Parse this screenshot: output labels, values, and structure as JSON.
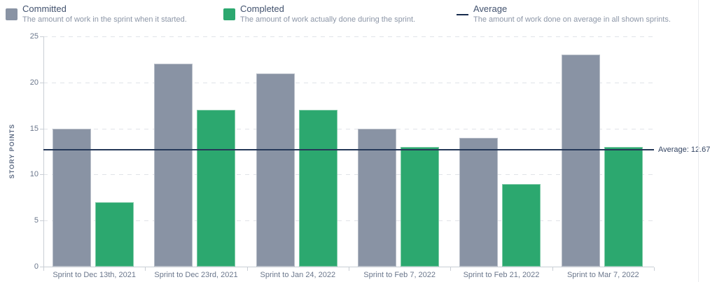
{
  "legend": {
    "committed": {
      "label": "Committed",
      "description": "The amount of work in the sprint when it started.",
      "color": "#8993A4"
    },
    "completed": {
      "label": "Completed",
      "description": "The amount of work actually done during the sprint.",
      "color": "#2CA86F"
    },
    "average": {
      "label": "Average",
      "description": "The amount of work done on average in all shown sprints.",
      "color": "#253858"
    }
  },
  "chart_data": {
    "type": "bar",
    "title": "",
    "xlabel": "",
    "ylabel": "STORY POINTS",
    "ylim": [
      0,
      25
    ],
    "ytick_step": 5,
    "grid": true,
    "legend_position": "top",
    "categories": [
      "Sprint to Dec 13th, 2021",
      "Sprint to Dec 23rd, 2021",
      "Sprint to Jan 24, 2022",
      "Sprint to Feb 7, 2022",
      "Sprint to Feb 21, 2022",
      "Sprint to Mar 7, 2022"
    ],
    "series": [
      {
        "name": "Committed",
        "color": "#8993A4",
        "values": [
          15,
          22,
          21,
          15,
          14,
          23
        ]
      },
      {
        "name": "Completed",
        "color": "#2CA86F",
        "values": [
          7,
          17,
          17,
          13,
          9,
          13
        ]
      }
    ],
    "average_line": {
      "value": 12.67,
      "label": "Average: 12.67",
      "color": "#253858"
    }
  }
}
